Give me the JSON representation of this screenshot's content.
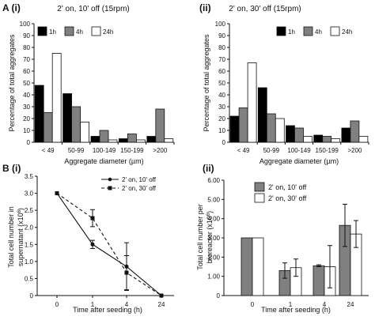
{
  "chart_data": [
    {
      "type": "bar",
      "panel_label": "A (i)",
      "title": "2' on, 10' off (15rpm)",
      "xlabel": "Aggregate diameter (µm)",
      "ylabel": "Percentage of total aggregates",
      "ylim": [
        0,
        100
      ],
      "yticks": [
        "0",
        "10",
        "20",
        "30",
        "40",
        "50",
        "60",
        "70",
        "80",
        "90",
        "100"
      ],
      "categories": [
        "< 49",
        "50-99",
        "100-149",
        "150-199",
        ">200"
      ],
      "legend_position": "top-left",
      "series": [
        {
          "name": "1h",
          "color": "#000000",
          "values": [
            48,
            41,
            5,
            3,
            5
          ]
        },
        {
          "name": "4h",
          "color": "#808080",
          "values": [
            25,
            30,
            10,
            7,
            28
          ]
        },
        {
          "name": "24h",
          "color": "#ffffff",
          "values": [
            75,
            17,
            2,
            2,
            3
          ]
        }
      ]
    },
    {
      "type": "bar",
      "panel_label": "(ii)",
      "title": "2' on, 30' off (15rpm)",
      "xlabel": "Aggregate diameter (µm)",
      "ylabel": "Percentage of total aggregates",
      "ylim": [
        0,
        100
      ],
      "yticks": [
        "0",
        "10",
        "20",
        "30",
        "40",
        "50",
        "60",
        "70",
        "80",
        "90",
        "100"
      ],
      "categories": [
        "< 49",
        "50-99",
        "100-149",
        "150-199",
        ">200"
      ],
      "legend_position": "top-right",
      "series": [
        {
          "name": "1h",
          "color": "#000000",
          "values": [
            22,
            46,
            14,
            6,
            12
          ]
        },
        {
          "name": "4h",
          "color": "#808080",
          "values": [
            29,
            24,
            12,
            5,
            18
          ]
        },
        {
          "name": "24h",
          "color": "#ffffff",
          "values": [
            67,
            20,
            5,
            3,
            5
          ]
        }
      ]
    },
    {
      "type": "line",
      "panel_label": "B (i)",
      "xlabel": "Time after seeding (h)",
      "ylabel_line1": "Total cell number in",
      "ylabel_line2": "supernatant (x10",
      "ylabel_sup": "6",
      "ylabel_end": ")",
      "ylim": [
        0,
        3.5
      ],
      "yticks": [
        "0",
        "0.5",
        "1.0",
        "1.5",
        "2.0",
        "2.5",
        "3.0",
        "3.5"
      ],
      "categories": [
        "0",
        "1",
        "4",
        "24"
      ],
      "legend_position": "top-right",
      "series": [
        {
          "name": "2' on, 10' off",
          "style": "solid",
          "marker": "circle",
          "values": [
            3.0,
            1.5,
            0.85,
            0.0
          ],
          "errors": [
            0,
            0.12,
            0.7,
            0
          ]
        },
        {
          "name": "2' on, 30' off",
          "style": "dashed",
          "marker": "square",
          "values": [
            3.0,
            2.27,
            0.67,
            0.0
          ],
          "errors": [
            0,
            0.25,
            0.5,
            0
          ]
        }
      ]
    },
    {
      "type": "bar",
      "panel_label": "(ii)",
      "xlabel": "Time after seeding (h)",
      "ylabel_line1": "Total cell number per",
      "ylabel_line2": "bioreactor (x10",
      "ylabel_sup": "6",
      "ylabel_end": ")",
      "ylim": [
        0,
        6.0
      ],
      "yticks": [
        "0",
        "1.00",
        "2.00",
        "3.00",
        "4.00",
        "5.00",
        "6.00"
      ],
      "categories": [
        "0",
        "1",
        "4",
        "24"
      ],
      "legend_position": "top-left",
      "series": [
        {
          "name": "2' on, 10' off",
          "color": "#808080",
          "values": [
            3.0,
            1.3,
            1.55,
            3.65
          ],
          "errors": [
            0,
            0.4,
            0.05,
            1.1
          ]
        },
        {
          "name": "2' on, 30' off",
          "color": "#ffffff",
          "values": [
            3.0,
            1.45,
            1.5,
            3.2
          ],
          "errors": [
            0,
            0.45,
            1.1,
            0.7
          ]
        }
      ]
    }
  ]
}
